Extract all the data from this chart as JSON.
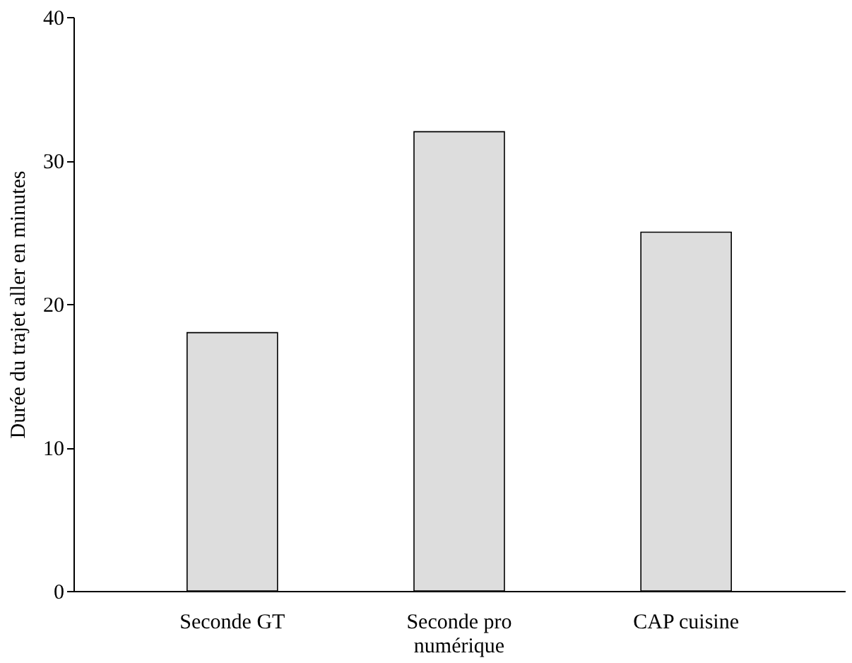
{
  "chart_data": {
    "type": "bar",
    "ylabel": "Durée du trajet aller en minutes",
    "categories": [
      "Seconde GT",
      "Seconde pro numérique",
      "CAP cuisine"
    ],
    "values": [
      18,
      32,
      25
    ],
    "color": "#dddddd",
    "ylim": [
      0,
      40
    ],
    "yticks": [
      0,
      10,
      20,
      30,
      40
    ],
    "grid": false
  }
}
